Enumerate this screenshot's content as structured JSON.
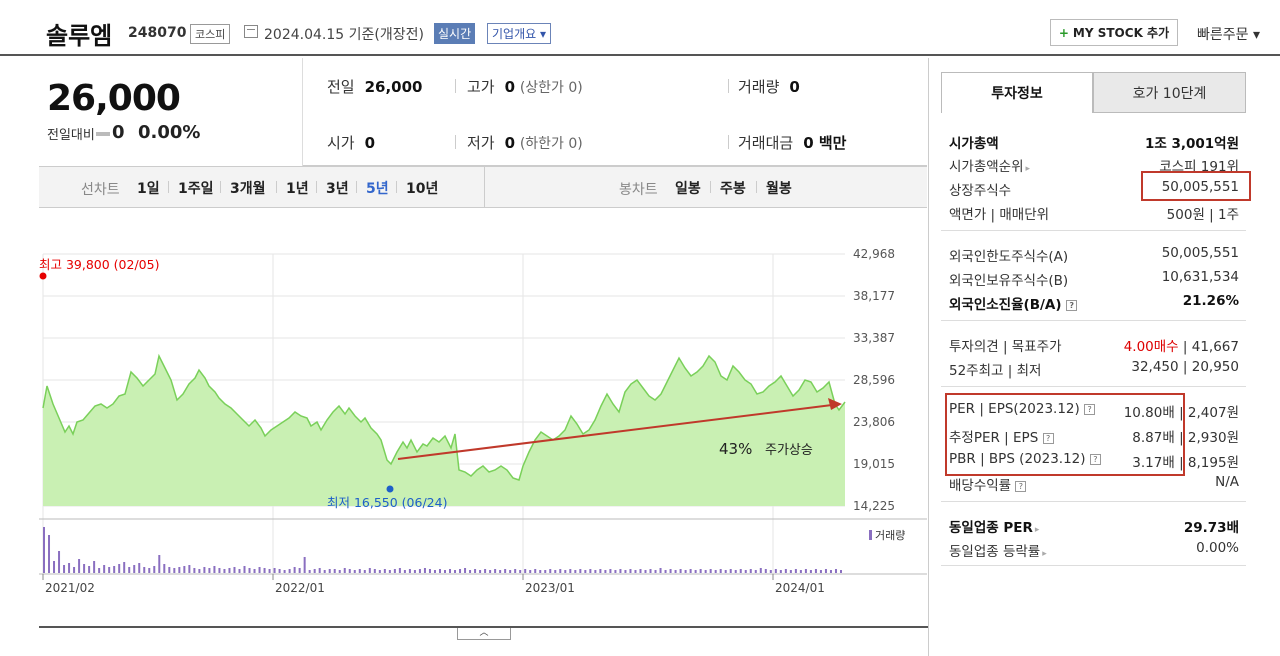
{
  "header": {
    "name": "솔루엠",
    "code": "248070",
    "market": "코스피",
    "date": "2024.04.15  기준(개장전)",
    "realtime": "실시간",
    "overview": "기업개요 ▾",
    "mystock": "MY STOCK 추가",
    "mystock_plus": "+",
    "quick_order": "빠른주문 ▾"
  },
  "price": {
    "current": "26,000",
    "change_label": "전일대비",
    "change": "0",
    "rate": "0.00%"
  },
  "stats": {
    "prev_label": "전일",
    "prev": "26,000",
    "high_label": "고가",
    "high": "0",
    "high_sub": "(상한가 0)",
    "volume_label": "거래량",
    "volume": "0",
    "open_label": "시가",
    "open": "0",
    "low_label": "저가",
    "low": "0",
    "low_sub": "(하한가 0)",
    "amount_label": "거래대금",
    "amount": "0 백만"
  },
  "toolbar": {
    "line_label": "선차트",
    "line_opts": [
      "1일",
      "1주일",
      "3개월",
      "1년",
      "3년",
      "5년",
      "10년"
    ],
    "candle_label": "봉차트",
    "candle_opts": [
      "일봉",
      "주봉",
      "월봉"
    ]
  },
  "chart_data": {
    "type": "area",
    "y_ticks": [
      "42,968",
      "38,177",
      "33,387",
      "28,596",
      "23,806",
      "19,015",
      "14,225"
    ],
    "ylim": [
      14225,
      42968
    ],
    "x_ticks": [
      "2021/02",
      "2022/01",
      "2023/01",
      "2024/01"
    ],
    "max_label": "최고 39,800 (02/05)",
    "min_label": "최저 16,550 (06/24)",
    "annotation_pct": "43%",
    "annotation_text": "주가상승",
    "volume_legend": "거래량",
    "accent": "#c0392b",
    "line_color": "#7ad05a",
    "fill_color": "#c9f0b3"
  },
  "panel": {
    "tab_info": "투자정보",
    "tab_ask": "호가 10단계",
    "rows1": [
      {
        "k": "시가총액",
        "v": "1조 3,001억원"
      },
      {
        "k": "시가총액순위",
        "v": "코스피 191위"
      },
      {
        "k": "상장주식수",
        "v": "50,005,551"
      },
      {
        "k": "액면가 | 매매단위",
        "v": "500원 | 1주"
      }
    ],
    "rows2": [
      {
        "k": "외국인한도주식수(A)",
        "v": "50,005,551"
      },
      {
        "k": "외국인보유주식수(B)",
        "v": "10,631,534"
      },
      {
        "k": "외국인소진율(B/A)",
        "v": "21.26%"
      }
    ],
    "rows3": [
      {
        "k": "투자의견 | 목표주가",
        "v1": "4.00매수",
        "v2": "41,667"
      },
      {
        "k": "52주최고 | 최저",
        "v1": "32,450",
        "v2": "20,950"
      }
    ],
    "rows4": [
      {
        "k": "PER | EPS(2023.12)",
        "v1": "10.80배",
        "v2": "2,407원"
      },
      {
        "k": "추정PER | EPS",
        "v1": "8.87배",
        "v2": "2,930원"
      },
      {
        "k": "PBR | BPS (2023.12)",
        "v1": "3.17배",
        "v2": "8,195원"
      },
      {
        "k": "배당수익률",
        "v1": "",
        "v2": "N/A"
      }
    ],
    "rows5": [
      {
        "k": "동일업종 PER",
        "v": "29.73배"
      },
      {
        "k": "동일업종 등락률",
        "v": "0.00%"
      }
    ]
  }
}
